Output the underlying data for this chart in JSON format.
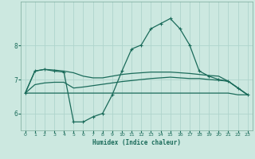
{
  "bg_color": "#cce8e0",
  "grid_color": "#afd4cc",
  "line_color": "#1a6b5a",
  "xlabel": "Humidex (Indice chaleur)",
  "xlim": [
    -0.5,
    23.5
  ],
  "ylim": [
    5.5,
    9.3
  ],
  "yticks": [
    6,
    7,
    8
  ],
  "xticks": [
    0,
    1,
    2,
    3,
    4,
    5,
    6,
    7,
    8,
    9,
    10,
    11,
    12,
    13,
    14,
    15,
    16,
    17,
    18,
    19,
    20,
    21,
    22,
    23
  ],
  "line_peak_x": [
    0,
    1,
    2,
    3,
    4,
    5,
    6,
    7,
    8,
    9,
    10,
    11,
    12,
    13,
    14,
    15,
    16,
    17,
    18,
    19,
    20,
    21,
    22,
    23
  ],
  "line_peak_y": [
    6.6,
    7.25,
    7.3,
    7.25,
    7.22,
    5.75,
    5.75,
    5.9,
    6.0,
    6.55,
    7.25,
    7.9,
    8.02,
    8.5,
    8.65,
    8.8,
    8.5,
    8.02,
    7.25,
    7.1,
    7.0,
    6.95,
    6.75,
    6.55
  ],
  "line_upper_x": [
    0,
    1,
    2,
    3,
    4,
    5,
    6,
    7,
    8,
    9,
    10,
    11,
    12,
    13,
    14,
    15,
    16,
    17,
    18,
    19,
    20,
    21,
    22,
    23
  ],
  "line_upper_y": [
    6.6,
    7.25,
    7.3,
    7.28,
    7.25,
    7.2,
    7.1,
    7.05,
    7.05,
    7.1,
    7.15,
    7.18,
    7.2,
    7.22,
    7.22,
    7.22,
    7.2,
    7.18,
    7.15,
    7.12,
    7.1,
    6.95,
    6.75,
    6.55
  ],
  "line_mid_x": [
    0,
    1,
    2,
    3,
    4,
    5,
    6,
    7,
    8,
    9,
    10,
    11,
    12,
    13,
    14,
    15,
    16,
    17,
    18,
    19,
    20,
    21,
    22,
    23
  ],
  "line_mid_y": [
    6.6,
    6.85,
    6.9,
    6.92,
    6.92,
    6.75,
    6.78,
    6.82,
    6.86,
    6.9,
    6.94,
    6.97,
    7.0,
    7.03,
    7.05,
    7.07,
    7.05,
    7.03,
    7.03,
    7.0,
    6.98,
    6.95,
    6.75,
    6.55
  ],
  "line_flat_x": [
    0,
    1,
    2,
    3,
    4,
    5,
    6,
    7,
    8,
    9,
    10,
    11,
    12,
    13,
    14,
    15,
    16,
    17,
    18,
    19,
    20,
    21,
    22,
    23
  ],
  "line_flat_y": [
    6.6,
    6.6,
    6.6,
    6.6,
    6.6,
    6.6,
    6.6,
    6.6,
    6.6,
    6.6,
    6.6,
    6.6,
    6.6,
    6.6,
    6.6,
    6.6,
    6.6,
    6.6,
    6.6,
    6.6,
    6.6,
    6.6,
    6.55,
    6.55
  ]
}
